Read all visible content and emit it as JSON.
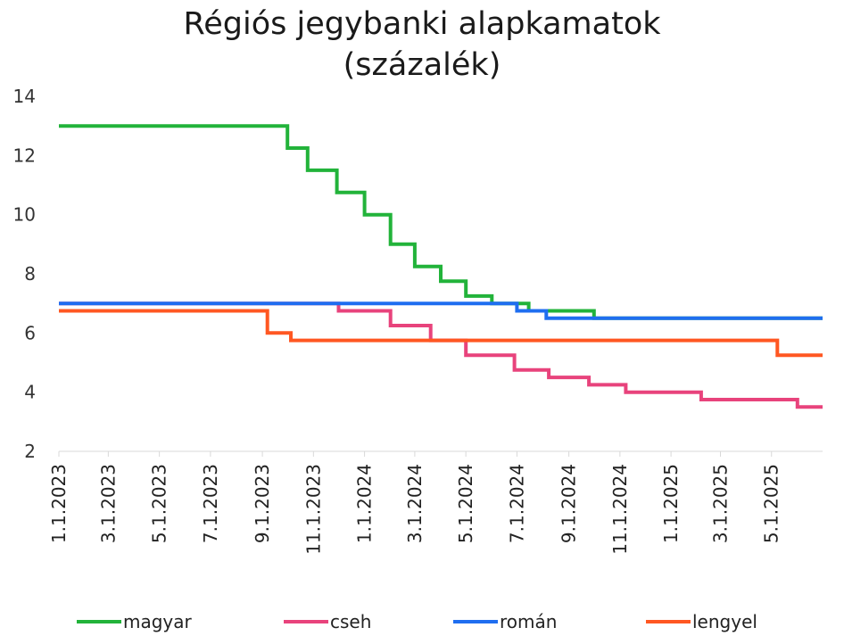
{
  "chart_data": {
    "type": "line",
    "title": "Régiós jegybanki alapkamatok",
    "subtitle": "(százalék)",
    "xlabel": "",
    "ylabel": "",
    "ylim": [
      2,
      14
    ],
    "yticks": [
      2,
      4,
      6,
      8,
      10,
      12,
      14
    ],
    "xlim": [
      "2023-01-01",
      "2025-07-01"
    ],
    "xtick_labels": [
      "1.1.2023",
      "3.1.2023",
      "5.1.2023",
      "7.1.2023",
      "9.1.2023",
      "11.1.2023",
      "1.1.2024",
      "3.1.2024",
      "5.1.2024",
      "7.1.2024",
      "9.1.2024",
      "11.1.2024",
      "1.1.2025",
      "3.1.2025",
      "5.1.2025"
    ],
    "xtick_dates": [
      "2023-01-01",
      "2023-03-01",
      "2023-05-01",
      "2023-07-01",
      "2023-09-01",
      "2023-11-01",
      "2024-01-01",
      "2024-03-01",
      "2024-05-01",
      "2024-07-01",
      "2024-09-01",
      "2024-11-01",
      "2025-01-01",
      "2025-03-01",
      "2025-05-01"
    ],
    "grid": false,
    "legend_position": "bottom",
    "series": [
      {
        "name": "magyar",
        "color": "#22b33a",
        "step": true,
        "points": [
          [
            "2023-01-01",
            13.0
          ],
          [
            "2023-10-01",
            12.25
          ],
          [
            "2023-10-25",
            11.5
          ],
          [
            "2023-11-29",
            10.75
          ],
          [
            "2024-01-01",
            10.0
          ],
          [
            "2024-02-01",
            9.0
          ],
          [
            "2024-03-01",
            8.25
          ],
          [
            "2024-04-01",
            7.75
          ],
          [
            "2024-05-01",
            7.25
          ],
          [
            "2024-06-01",
            7.0
          ],
          [
            "2024-07-15",
            6.75
          ],
          [
            "2024-10-01",
            6.5
          ]
        ]
      },
      {
        "name": "cseh",
        "color": "#e8437c",
        "step": true,
        "points": [
          [
            "2023-01-01",
            7.0
          ],
          [
            "2023-12-01",
            6.75
          ],
          [
            "2024-02-01",
            6.25
          ],
          [
            "2024-03-20",
            5.75
          ],
          [
            "2024-05-01",
            5.25
          ],
          [
            "2024-06-28",
            4.75
          ],
          [
            "2024-08-08",
            4.5
          ],
          [
            "2024-09-25",
            4.25
          ],
          [
            "2024-11-08",
            4.0
          ],
          [
            "2025-02-06",
            3.75
          ],
          [
            "2025-06-01",
            3.5
          ]
        ]
      },
      {
        "name": "román",
        "color": "#1f6ef0",
        "step": true,
        "points": [
          [
            "2023-01-01",
            7.0
          ],
          [
            "2024-07-01",
            6.75
          ],
          [
            "2024-08-05",
            6.5
          ]
        ]
      },
      {
        "name": "lengyel",
        "color": "#ff5722",
        "step": true,
        "points": [
          [
            "2023-01-01",
            6.75
          ],
          [
            "2023-09-07",
            6.0
          ],
          [
            "2023-10-05",
            5.75
          ],
          [
            "2025-05-08",
            5.25
          ]
        ]
      }
    ]
  }
}
